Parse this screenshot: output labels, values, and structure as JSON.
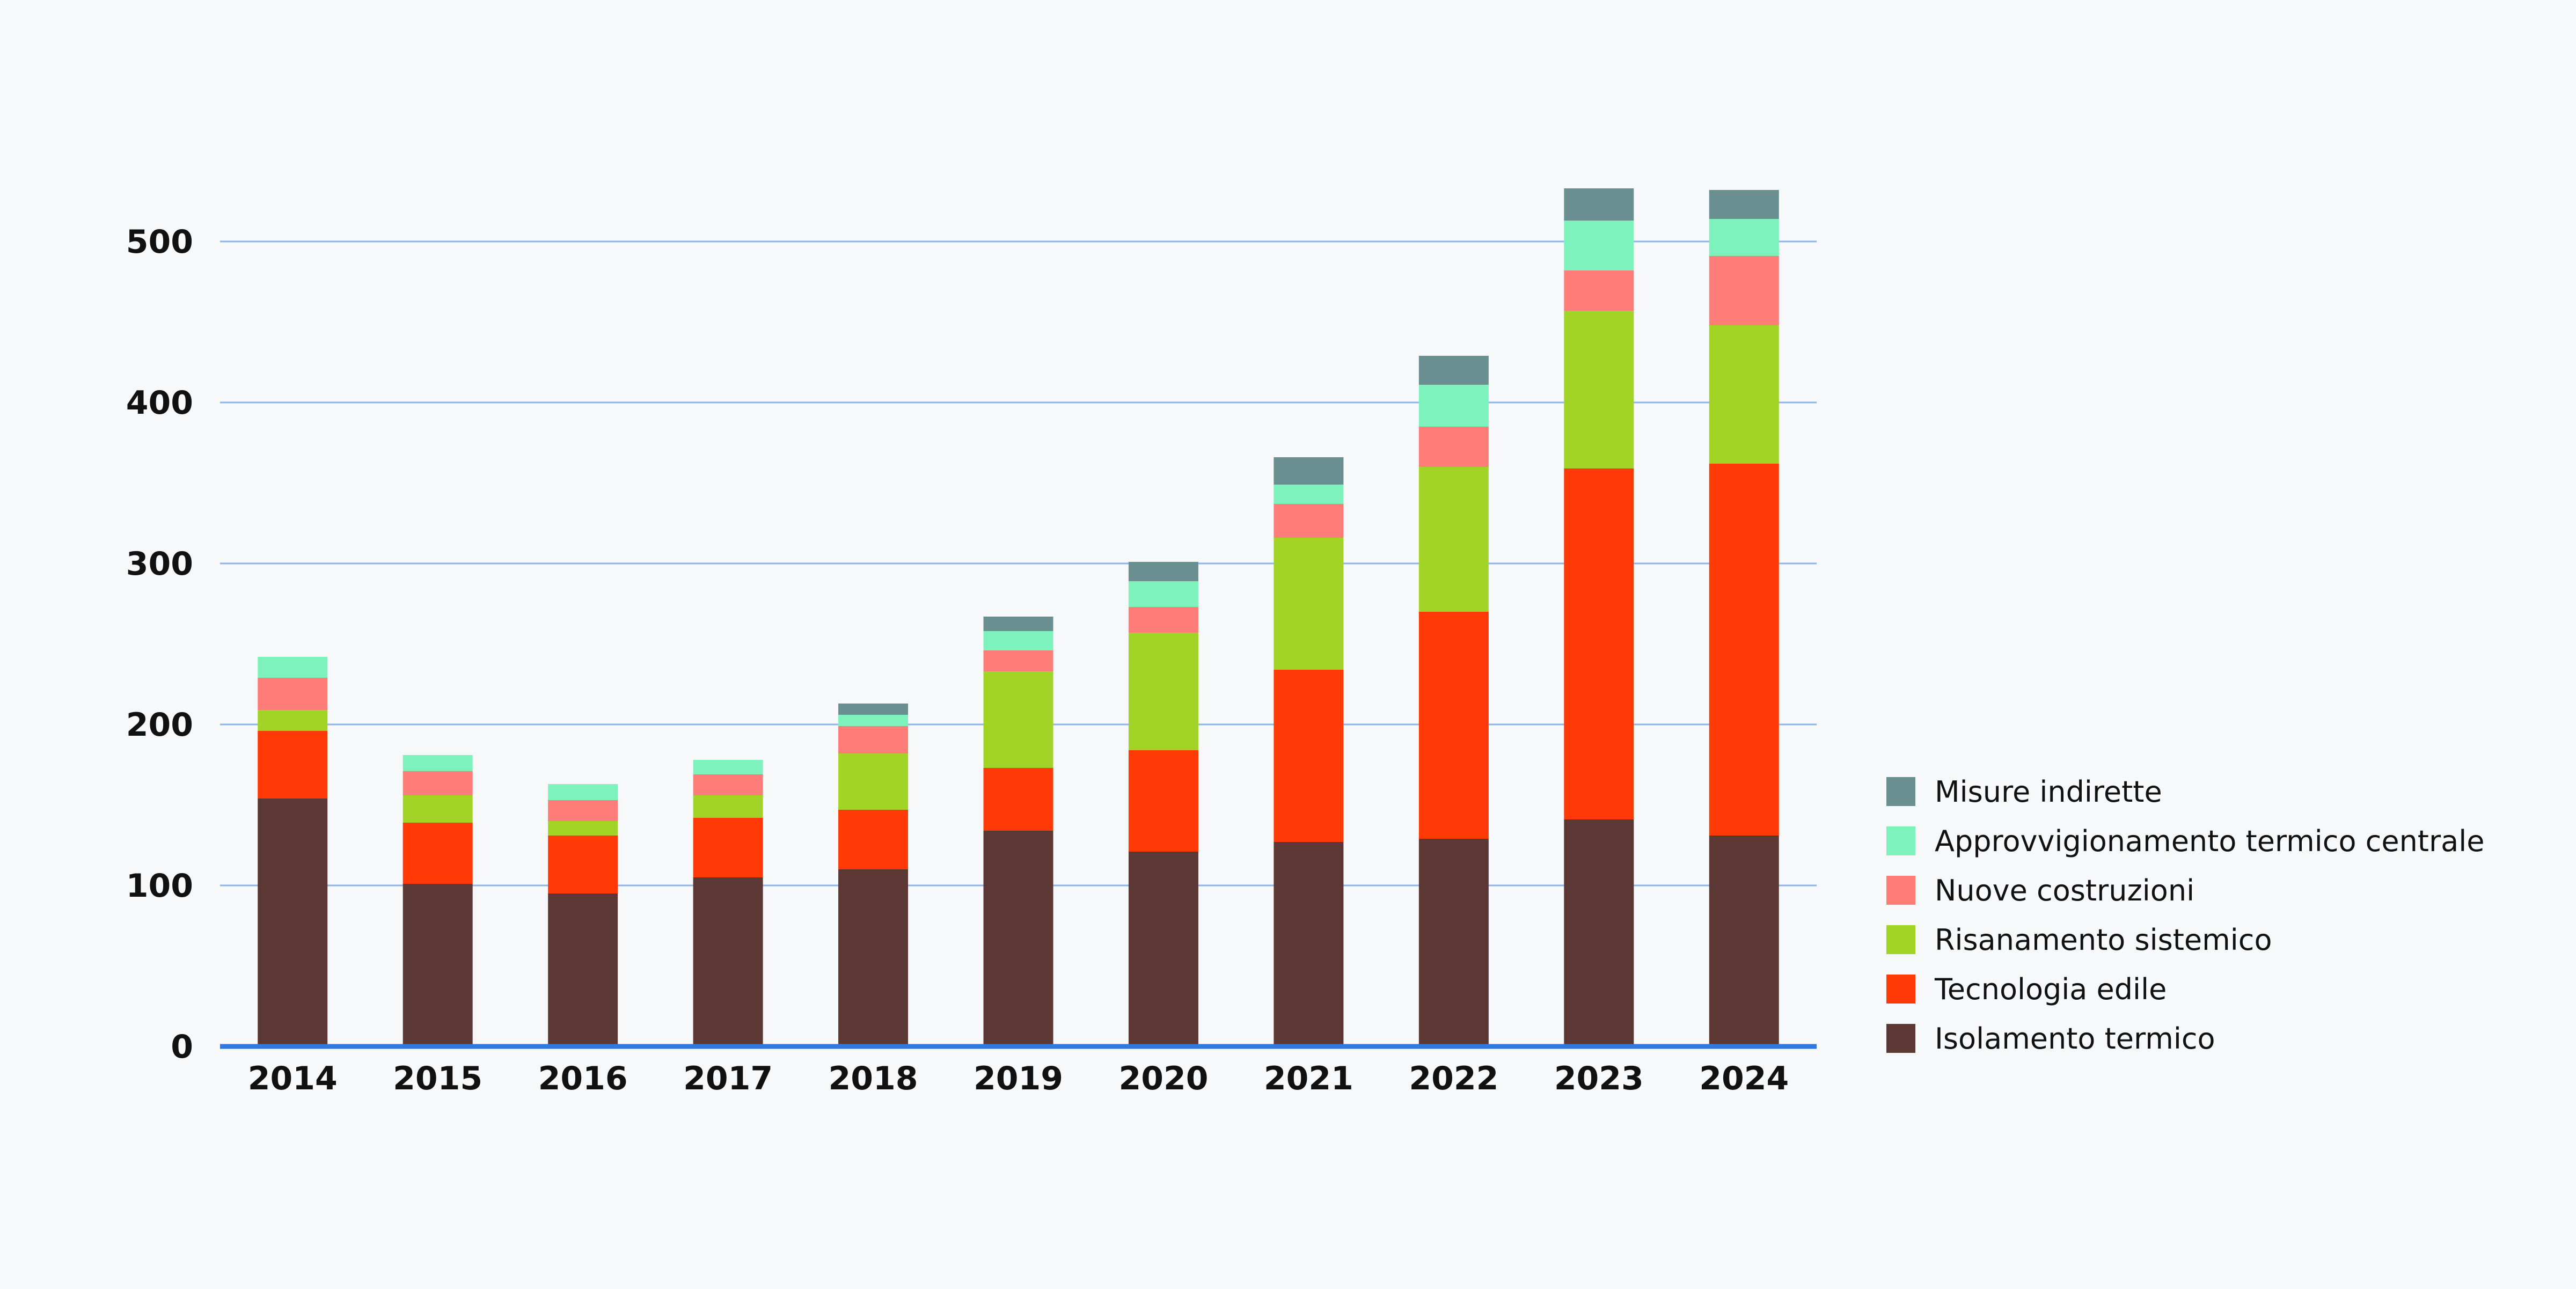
{
  "chart_data": {
    "type": "bar",
    "stacked": true,
    "title": "",
    "xlabel": "",
    "ylabel": "",
    "ylim": [
      0,
      540
    ],
    "yticks": [
      0,
      100,
      200,
      300,
      400,
      500
    ],
    "ytick_labels": [
      "0",
      "100",
      "200",
      "300",
      "400",
      "500"
    ],
    "grid": true,
    "legend_position": "right",
    "categories": [
      "2014",
      "2015",
      "2016",
      "2017",
      "2018",
      "2019",
      "2020",
      "2021",
      "2022",
      "2023",
      "2024"
    ],
    "series": [
      {
        "name": "Isolamento termico",
        "color": "#5c3835",
        "values": [
          154,
          101,
          95,
          105,
          110,
          134,
          121,
          127,
          129,
          141,
          131
        ]
      },
      {
        "name": "Tecnologia edile",
        "color": "#ff3a06",
        "values": [
          42,
          38,
          36,
          37,
          37,
          39,
          63,
          107,
          141,
          218,
          231
        ]
      },
      {
        "name": "Risanamento sistemico",
        "color": "#a2d327",
        "values": [
          13,
          17,
          9,
          14,
          35,
          60,
          73,
          82,
          90,
          98,
          86
        ]
      },
      {
        "name": "Nuove costruzioni",
        "color": "#ff7d79",
        "values": [
          20,
          15,
          13,
          13,
          17,
          13,
          16,
          21,
          25,
          25,
          43
        ]
      },
      {
        "name": "Approvvigionamento termico centrale",
        "color": "#7ef2bd",
        "values": [
          13,
          10,
          10,
          9,
          7,
          12,
          16,
          12,
          26,
          31,
          23
        ]
      },
      {
        "name": "Misure indirette",
        "color": "#698f90",
        "values": [
          0,
          0,
          0,
          0,
          7,
          9,
          12,
          17,
          18,
          20,
          18
        ]
      }
    ],
    "legend_order": [
      "Misure indirette",
      "Approvvigionamento termico centrale",
      "Nuove costruzioni",
      "Risanamento sistemico",
      "Tecnologia edile",
      "Isolamento termico"
    ],
    "colors": {
      "gridline": "#8fb4e8",
      "baseline": "#2f7ae0",
      "background": "#f7f8fa",
      "text": "#111111"
    }
  }
}
